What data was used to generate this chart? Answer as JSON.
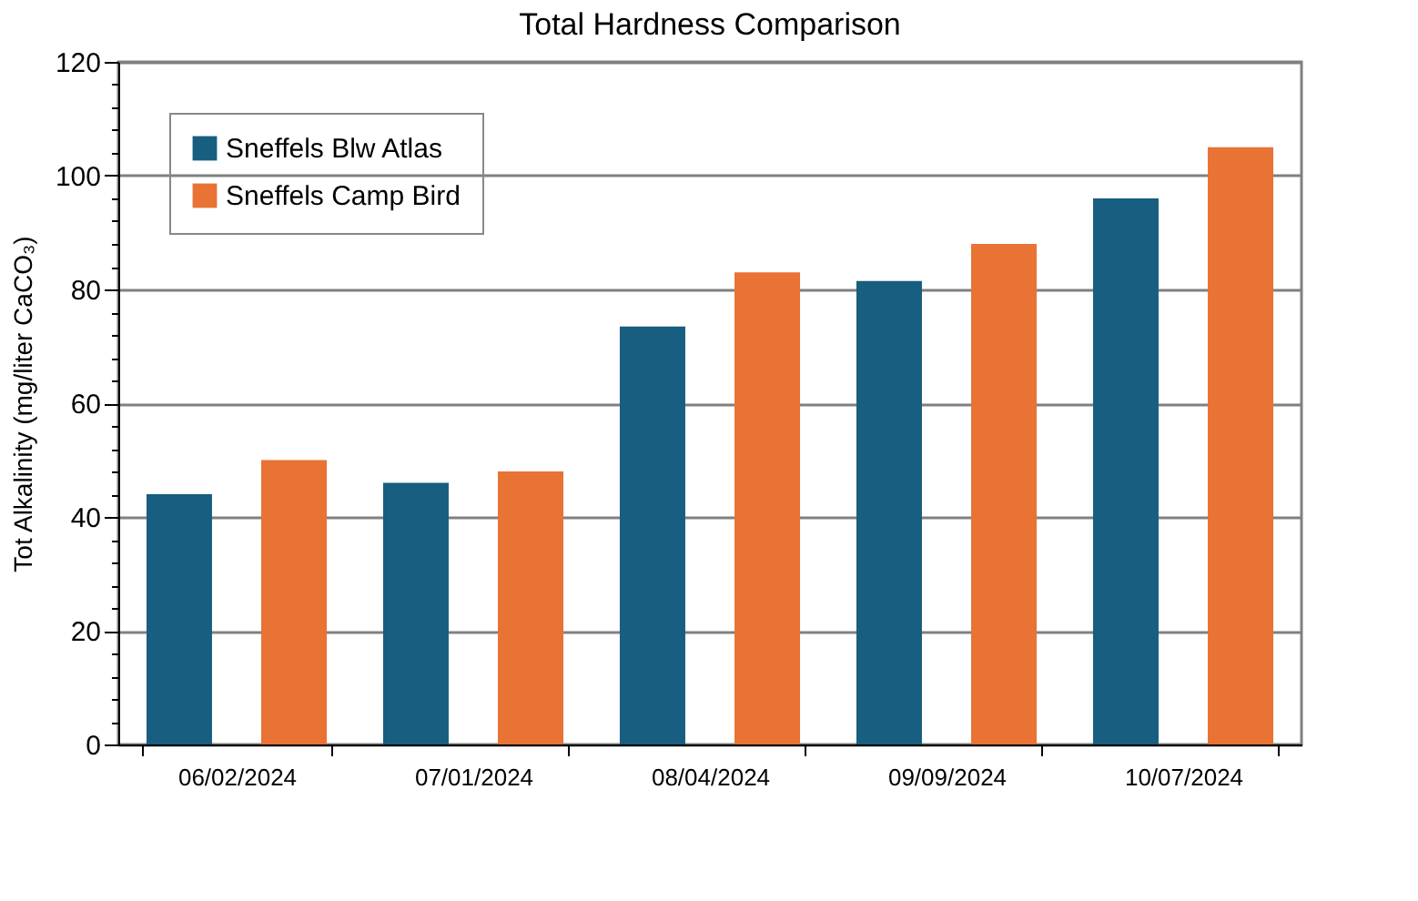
{
  "chart_data": {
    "type": "bar",
    "title": "Total Hardness Comparison",
    "ylabel": "Tot Alkalinity (mg/liter CaCO₃)",
    "categories": [
      "06/02/2024",
      "07/01/2024",
      "08/04/2024",
      "09/09/2024",
      "10/07/2024"
    ],
    "series": [
      {
        "name": "Sneffels Blw Atlas",
        "color": "#175e80",
        "values": [
          44,
          46,
          73.5,
          81.5,
          96
        ]
      },
      {
        "name": "Sneffels Camp Bird",
        "color": "#e87334",
        "values": [
          50,
          48,
          83,
          88,
          105
        ]
      }
    ],
    "ylim": [
      0,
      120
    ],
    "yticks": [
      0,
      {
        "value": 4,
        "label": null
      },
      {
        "value": 8,
        "label": null
      },
      {
        "value": 12,
        "label": null
      },
      {
        "value": 16,
        "label": null
      },
      20,
      {
        "value": 24,
        "label": null
      },
      {
        "value": 28,
        "label": null
      },
      {
        "value": 32,
        "label": null
      },
      {
        "value": 36,
        "label": null
      },
      40,
      {
        "value": 44,
        "label": null
      },
      {
        "value": 48,
        "label": null
      },
      {
        "value": 52,
        "label": null
      },
      {
        "value": 56,
        "label": null
      },
      60,
      {
        "value": 64,
        "label": null
      },
      {
        "value": 68,
        "label": null
      },
      {
        "value": 72,
        "label": null
      },
      {
        "value": 76,
        "label": null
      },
      80,
      {
        "value": 84,
        "label": null
      },
      {
        "value": 88,
        "label": null
      },
      {
        "value": 92,
        "label": null
      },
      {
        "value": 96,
        "label": null
      },
      100,
      {
        "value": 104,
        "label": null
      },
      {
        "value": 108,
        "label": null
      },
      {
        "value": 112,
        "label": null
      },
      {
        "value": 116,
        "label": null
      },
      120
    ],
    "grid": "y",
    "legend": "top left"
  }
}
